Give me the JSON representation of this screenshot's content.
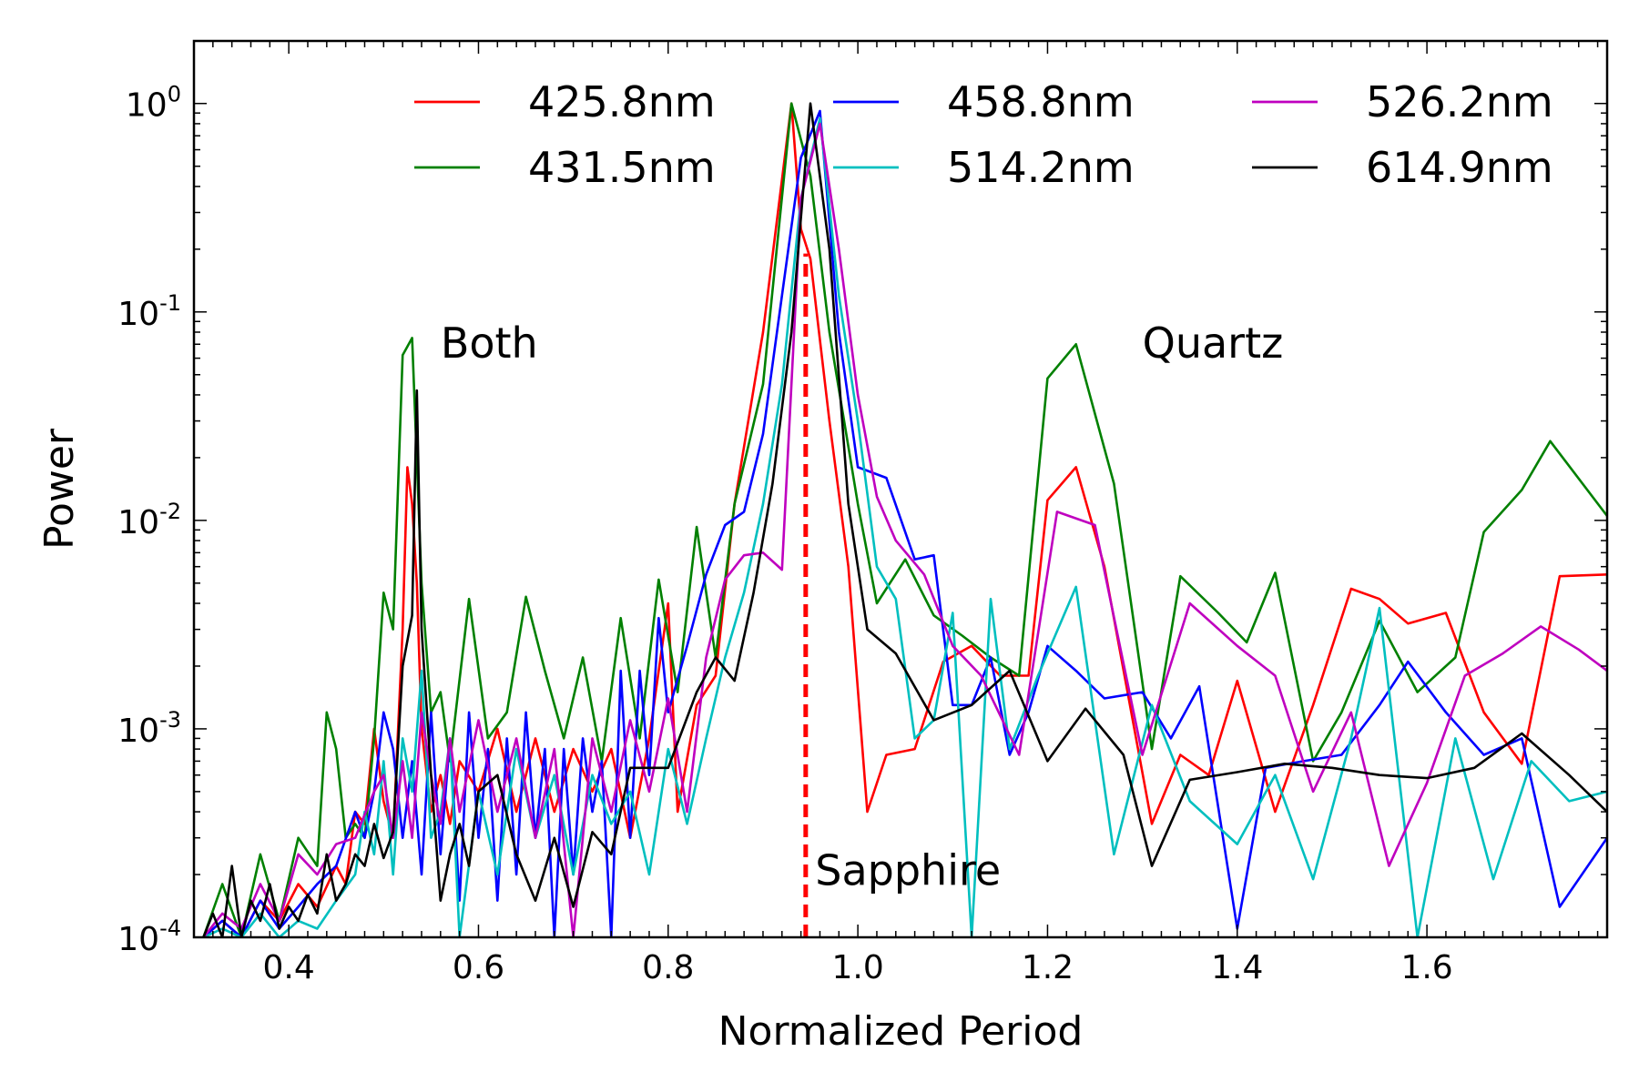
{
  "chart_data": {
    "type": "line",
    "title": "",
    "xlabel": "Normalized Period",
    "ylabel": "Power",
    "xlim": [
      0.3,
      1.79
    ],
    "ylim_log10": [
      -4,
      0.3
    ],
    "yscale": "log",
    "x_ticks": [
      0.4,
      0.6,
      0.8,
      1.0,
      1.2,
      1.4,
      1.6
    ],
    "x_tick_labels": [
      "0.4",
      "0.6",
      "0.8",
      "1.0",
      "1.2",
      "1.4",
      "1.6"
    ],
    "y_ticks_exp": [
      -4,
      -3,
      -2,
      -1,
      0
    ],
    "y_tick_base": "10",
    "y_tick_exps": [
      "-4",
      "-3",
      "-2",
      "-1",
      "0"
    ],
    "legend_position": "top",
    "annotations": [
      {
        "text": "Both",
        "x": 0.56,
        "y_exp": -1.22
      },
      {
        "text": "Quartz",
        "x": 1.3,
        "y_exp": -1.22
      },
      {
        "text": "Sapphire",
        "x": 0.955,
        "y_exp": -3.75
      }
    ],
    "reference_line": {
      "name": "Sapphire",
      "x": 0.945,
      "y_top_exp": -0.72,
      "color": "#ff0000"
    },
    "series": [
      {
        "name": "425.8nm",
        "color": "#ff0000",
        "x": [
          0.31,
          0.33,
          0.35,
          0.37,
          0.39,
          0.41,
          0.43,
          0.45,
          0.46,
          0.47,
          0.48,
          0.49,
          0.5,
          0.51,
          0.52,
          0.525,
          0.53,
          0.535,
          0.54,
          0.55,
          0.56,
          0.57,
          0.58,
          0.6,
          0.62,
          0.64,
          0.66,
          0.68,
          0.7,
          0.72,
          0.74,
          0.76,
          0.78,
          0.8,
          0.81,
          0.83,
          0.85,
          0.87,
          0.9,
          0.93,
          0.94,
          0.95,
          0.97,
          0.99,
          1.01,
          1.03,
          1.06,
          1.09,
          1.12,
          1.15,
          1.18,
          1.2,
          1.23,
          1.26,
          1.31,
          1.34,
          1.37,
          1.4,
          1.44,
          1.48,
          1.52,
          1.55,
          1.58,
          1.62,
          1.66,
          1.7,
          1.74,
          1.79
        ],
        "y": [
          0.0001,
          0.00012,
          0.0001,
          0.00015,
          0.00012,
          0.00018,
          0.00014,
          0.00022,
          0.00018,
          0.0004,
          0.00035,
          0.001,
          0.00045,
          0.0003,
          0.003,
          0.018,
          0.012,
          0.005,
          0.001,
          0.0004,
          0.0006,
          0.00035,
          0.0007,
          0.0005,
          0.001,
          0.0004,
          0.0009,
          0.0004,
          0.0008,
          0.0005,
          0.0008,
          0.0003,
          0.0009,
          0.004,
          0.0004,
          0.0013,
          0.0018,
          0.012,
          0.08,
          1.0,
          0.25,
          0.18,
          0.03,
          0.006,
          0.0004,
          0.00075,
          0.0008,
          0.0021,
          0.0025,
          0.0018,
          0.0018,
          0.0125,
          0.018,
          0.006,
          0.00035,
          0.00075,
          0.0006,
          0.0017,
          0.0004,
          0.0013,
          0.0047,
          0.0042,
          0.0032,
          0.0036,
          0.0012,
          0.00068,
          0.0054,
          0.0055
        ]
      },
      {
        "name": "431.5nm",
        "color": "#008000",
        "x": [
          0.31,
          0.33,
          0.35,
          0.37,
          0.39,
          0.41,
          0.43,
          0.44,
          0.45,
          0.46,
          0.47,
          0.48,
          0.49,
          0.5,
          0.51,
          0.52,
          0.53,
          0.54,
          0.55,
          0.56,
          0.57,
          0.59,
          0.61,
          0.63,
          0.65,
          0.67,
          0.69,
          0.71,
          0.73,
          0.75,
          0.77,
          0.79,
          0.81,
          0.83,
          0.85,
          0.87,
          0.9,
          0.93,
          0.95,
          0.97,
          1.0,
          1.02,
          1.05,
          1.08,
          1.11,
          1.14,
          1.17,
          1.2,
          1.23,
          1.27,
          1.31,
          1.34,
          1.38,
          1.41,
          1.44,
          1.48,
          1.51,
          1.55,
          1.59,
          1.63,
          1.66,
          1.7,
          1.73,
          1.79
        ],
        "y": [
          0.0001,
          0.00018,
          0.0001,
          0.00025,
          0.00012,
          0.0003,
          0.00022,
          0.0012,
          0.0008,
          0.0003,
          0.00035,
          0.0003,
          0.0009,
          0.0045,
          0.003,
          0.062,
          0.075,
          0.005,
          0.0012,
          0.0015,
          0.0007,
          0.0042,
          0.0009,
          0.0012,
          0.0043,
          0.0019,
          0.0009,
          0.0022,
          0.0007,
          0.0034,
          0.0009,
          0.0052,
          0.0015,
          0.0093,
          0.0022,
          0.012,
          0.045,
          1.0,
          0.45,
          0.08,
          0.012,
          0.004,
          0.0065,
          0.0035,
          0.0028,
          0.0022,
          0.0018,
          0.048,
          0.07,
          0.015,
          0.0008,
          0.0054,
          0.0036,
          0.0026,
          0.0056,
          0.0007,
          0.0012,
          0.0033,
          0.0015,
          0.0022,
          0.0088,
          0.014,
          0.024,
          0.0105
        ]
      },
      {
        "name": "458.8nm",
        "color": "#0000ff",
        "x": [
          0.31,
          0.33,
          0.35,
          0.37,
          0.39,
          0.41,
          0.43,
          0.45,
          0.47,
          0.48,
          0.49,
          0.5,
          0.51,
          0.52,
          0.53,
          0.54,
          0.55,
          0.56,
          0.57,
          0.58,
          0.59,
          0.6,
          0.61,
          0.62,
          0.63,
          0.64,
          0.65,
          0.66,
          0.67,
          0.68,
          0.69,
          0.7,
          0.71,
          0.72,
          0.73,
          0.74,
          0.75,
          0.76,
          0.77,
          0.78,
          0.79,
          0.8,
          0.82,
          0.84,
          0.86,
          0.88,
          0.9,
          0.92,
          0.94,
          0.96,
          0.98,
          1.0,
          1.03,
          1.06,
          1.08,
          1.1,
          1.12,
          1.14,
          1.16,
          1.18,
          1.2,
          1.23,
          1.26,
          1.3,
          1.33,
          1.36,
          1.4,
          1.43,
          1.47,
          1.51,
          1.55,
          1.58,
          1.62,
          1.66,
          1.7,
          1.74,
          1.79
        ],
        "y": [
          0.0001,
          0.00012,
          0.0001,
          0.00015,
          0.00011,
          0.00014,
          0.00018,
          0.00022,
          0.0004,
          0.0003,
          0.0005,
          0.0012,
          0.0008,
          0.0003,
          0.0007,
          0.0002,
          0.0012,
          0.00025,
          0.0009,
          0.00015,
          0.0012,
          0.0003,
          0.0008,
          0.00015,
          0.0009,
          0.0002,
          0.0012,
          0.0003,
          0.0008,
          0.0001,
          0.0008,
          0.0002,
          0.0009,
          0.0004,
          0.0007,
          0.0001,
          0.0019,
          0.0003,
          0.0019,
          0.0006,
          0.0034,
          0.0012,
          0.0025,
          0.0055,
          0.0095,
          0.011,
          0.026,
          0.12,
          0.55,
          0.92,
          0.08,
          0.018,
          0.016,
          0.0065,
          0.0068,
          0.0013,
          0.0013,
          0.0022,
          0.00075,
          0.0012,
          0.0025,
          0.0019,
          0.0014,
          0.0015,
          0.0009,
          0.0016,
          0.00011,
          0.00065,
          0.0007,
          0.00075,
          0.0013,
          0.0021,
          0.0012,
          0.00075,
          0.0009,
          0.00014,
          0.0003
        ]
      },
      {
        "name": "514.2nm",
        "color": "#00bfbf",
        "x": [
          0.31,
          0.33,
          0.35,
          0.37,
          0.39,
          0.41,
          0.43,
          0.45,
          0.47,
          0.48,
          0.49,
          0.5,
          0.51,
          0.52,
          0.53,
          0.54,
          0.55,
          0.56,
          0.57,
          0.58,
          0.6,
          0.62,
          0.64,
          0.66,
          0.68,
          0.7,
          0.72,
          0.74,
          0.76,
          0.78,
          0.8,
          0.82,
          0.84,
          0.86,
          0.88,
          0.9,
          0.92,
          0.94,
          0.96,
          0.98,
          1.0,
          1.02,
          1.04,
          1.06,
          1.08,
          1.1,
          1.12,
          1.14,
          1.16,
          1.19,
          1.23,
          1.27,
          1.31,
          1.35,
          1.4,
          1.44,
          1.48,
          1.52,
          1.55,
          1.59,
          1.63,
          1.67,
          1.71,
          1.75,
          1.79
        ],
        "y": [
          0.0001,
          0.00011,
          0.0001,
          0.00013,
          0.0001,
          0.00012,
          0.00011,
          0.00015,
          0.0002,
          0.0004,
          0.00025,
          0.0007,
          0.0002,
          0.0009,
          0.0005,
          0.0019,
          0.0003,
          0.0004,
          0.0009,
          0.0001,
          0.0005,
          0.0002,
          0.0008,
          0.0003,
          0.0006,
          0.0002,
          0.0006,
          0.00035,
          0.0005,
          0.0002,
          0.0008,
          0.00035,
          0.0009,
          0.0022,
          0.0045,
          0.012,
          0.045,
          0.35,
          0.85,
          0.12,
          0.03,
          0.006,
          0.0042,
          0.0009,
          0.0011,
          0.0036,
          0.0001,
          0.0042,
          0.0008,
          0.0018,
          0.0048,
          0.00025,
          0.0013,
          0.00045,
          0.00028,
          0.0006,
          0.00019,
          0.0009,
          0.0038,
          0.0001,
          0.0009,
          0.00019,
          0.0007,
          0.00045,
          0.0005
        ]
      },
      {
        "name": "526.2nm",
        "color": "#bf00bf",
        "x": [
          0.31,
          0.33,
          0.35,
          0.37,
          0.39,
          0.41,
          0.43,
          0.45,
          0.47,
          0.49,
          0.5,
          0.51,
          0.52,
          0.53,
          0.54,
          0.55,
          0.56,
          0.57,
          0.58,
          0.6,
          0.62,
          0.64,
          0.66,
          0.68,
          0.7,
          0.72,
          0.74,
          0.76,
          0.78,
          0.8,
          0.82,
          0.84,
          0.86,
          0.88,
          0.9,
          0.92,
          0.94,
          0.96,
          0.98,
          1.0,
          1.02,
          1.04,
          1.07,
          1.1,
          1.13,
          1.17,
          1.21,
          1.25,
          1.3,
          1.35,
          1.4,
          1.44,
          1.48,
          1.52,
          1.56,
          1.6,
          1.64,
          1.68,
          1.72,
          1.76,
          1.79
        ],
        "y": [
          0.0001,
          0.00013,
          0.00011,
          0.00018,
          0.00012,
          0.00025,
          0.0002,
          0.00028,
          0.0003,
          0.0005,
          0.0006,
          0.0003,
          0.0007,
          0.0003,
          0.0012,
          0.0006,
          0.00035,
          0.0009,
          0.0004,
          0.0011,
          0.0004,
          0.0009,
          0.0003,
          0.0008,
          0.0001,
          0.0009,
          0.0004,
          0.0011,
          0.0005,
          0.0014,
          0.0004,
          0.0022,
          0.0052,
          0.0068,
          0.007,
          0.0058,
          0.35,
          0.8,
          0.2,
          0.04,
          0.013,
          0.008,
          0.0055,
          0.0025,
          0.0018,
          0.00075,
          0.011,
          0.0095,
          0.00075,
          0.004,
          0.0025,
          0.0018,
          0.0005,
          0.0012,
          0.00022,
          0.00055,
          0.0018,
          0.0023,
          0.0031,
          0.0024,
          0.0019
        ]
      },
      {
        "name": "614.9nm",
        "color": "#000000",
        "x": [
          0.31,
          0.32,
          0.33,
          0.34,
          0.35,
          0.36,
          0.37,
          0.38,
          0.39,
          0.4,
          0.41,
          0.42,
          0.43,
          0.44,
          0.45,
          0.46,
          0.47,
          0.48,
          0.49,
          0.5,
          0.51,
          0.52,
          0.53,
          0.535,
          0.54,
          0.55,
          0.56,
          0.57,
          0.58,
          0.59,
          0.6,
          0.62,
          0.64,
          0.66,
          0.68,
          0.7,
          0.72,
          0.74,
          0.76,
          0.8,
          0.83,
          0.85,
          0.87,
          0.89,
          0.91,
          0.93,
          0.95,
          0.97,
          0.99,
          1.01,
          1.04,
          1.08,
          1.12,
          1.16,
          1.2,
          1.24,
          1.28,
          1.31,
          1.35,
          1.4,
          1.45,
          1.5,
          1.55,
          1.6,
          1.65,
          1.7,
          1.75,
          1.79
        ],
        "y": [
          0.0001,
          0.00013,
          0.0001,
          0.00022,
          0.0001,
          0.00015,
          0.00012,
          0.00018,
          0.00011,
          0.00014,
          0.00012,
          0.00016,
          0.00013,
          0.00025,
          0.00015,
          0.00018,
          0.00025,
          0.00022,
          0.00035,
          0.00024,
          0.00032,
          0.002,
          0.0035,
          0.042,
          0.003,
          0.0006,
          0.00015,
          0.00025,
          0.00035,
          0.00022,
          0.0005,
          0.0006,
          0.00025,
          0.00015,
          0.0003,
          0.00014,
          0.00032,
          0.00025,
          0.00065,
          0.00065,
          0.0015,
          0.0022,
          0.0017,
          0.0045,
          0.015,
          0.08,
          1.0,
          0.2,
          0.012,
          0.003,
          0.0023,
          0.0011,
          0.0013,
          0.0019,
          0.0007,
          0.00125,
          0.00075,
          0.00022,
          0.00057,
          0.00062,
          0.00068,
          0.00065,
          0.0006,
          0.00058,
          0.00065,
          0.00095,
          0.0006,
          0.0004
        ]
      }
    ]
  }
}
